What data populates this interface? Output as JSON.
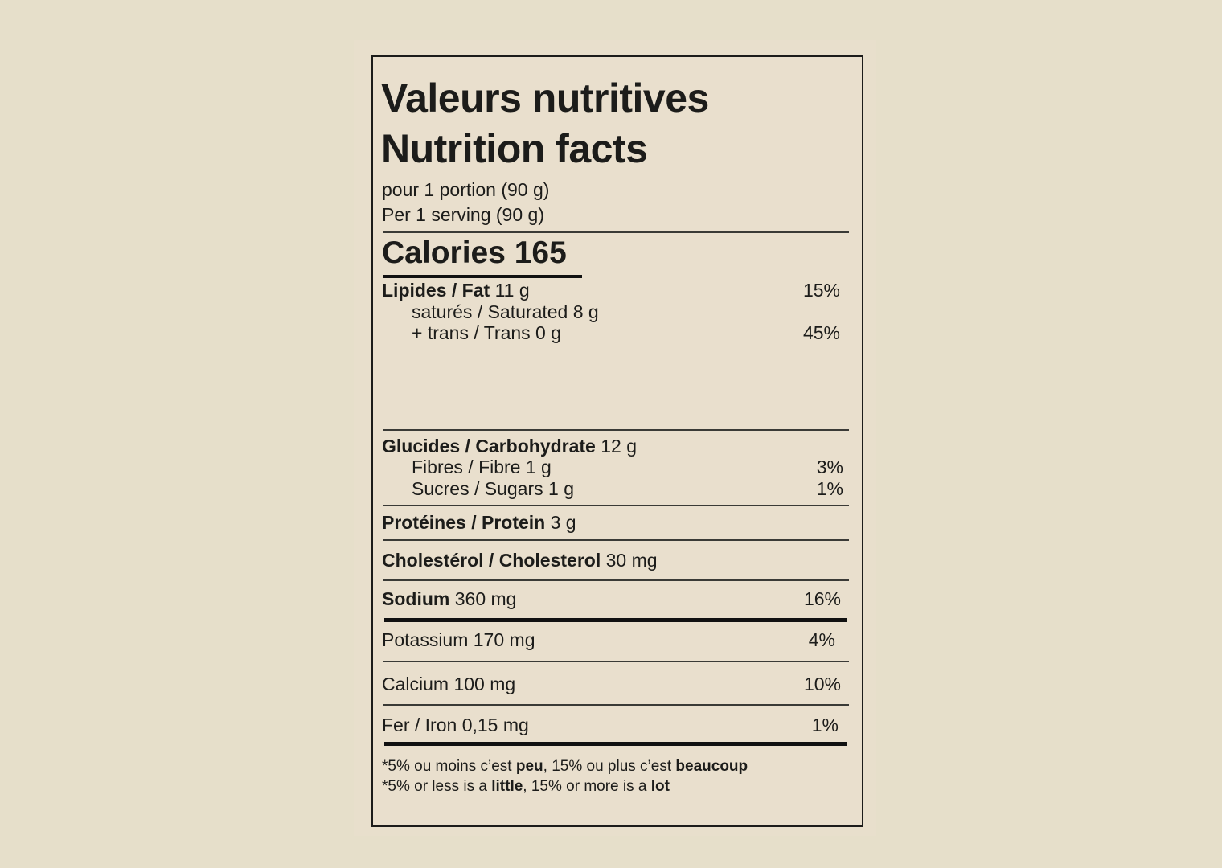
{
  "title_fr": "Valeurs nutritives",
  "title_en": "Nutrition facts",
  "serving_fr": "pour 1 portion (90 g)",
  "serving_en": "Per 1 serving (90 g)",
  "calories": "Calories 165",
  "rows": [
    {
      "bold": "Lipides / Fat",
      "value": " 11 g",
      "dv": "15%"
    },
    {
      "bold": "",
      "value": "saturés / Saturated 8 g",
      "dv": ""
    },
    {
      "bold": "",
      "value": "+ trans / Trans 0 g",
      "dv": "45%"
    },
    {
      "bold": "Glucides / Carbohydrate",
      "value": " 12 g",
      "dv": ""
    },
    {
      "bold": "",
      "value": "Fibres / Fibre 1 g",
      "dv": "3%"
    },
    {
      "bold": "",
      "value": "Sucres / Sugars 1 g",
      "dv": "1%"
    },
    {
      "bold": "Protéines / Protein",
      "value": " 3 g",
      "dv": ""
    },
    {
      "bold": "Cholestérol / Cholesterol",
      "value": " 30 mg",
      "dv": ""
    },
    {
      "bold": "Sodium",
      "value": " 360 mg",
      "dv": "16%"
    },
    {
      "bold": "",
      "value": "Potassium 170 mg",
      "dv": "4%"
    },
    {
      "bold": "",
      "value": "Calcium 100 mg",
      "dv": "10%"
    },
    {
      "bold": "",
      "value": "Fer / Iron 0,15 mg",
      "dv": "1%"
    }
  ],
  "footnote_fr": {
    "a": "*5% ou moins c’est ",
    "b": "peu",
    "c": ", 15% ou plus c’est ",
    "d": "beaucoup"
  },
  "footnote_en": {
    "a": "*5% or less is a ",
    "b": "little",
    "c": ", 15% or more is a ",
    "d": "lot"
  }
}
